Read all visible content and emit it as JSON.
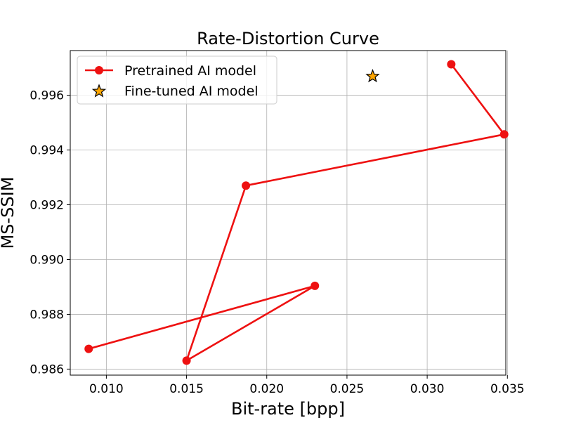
{
  "chart_data": {
    "type": "line",
    "title": "Rate-Distortion Curve",
    "xlabel": "Bit-rate [bpp]",
    "ylabel": "MS-SSIM",
    "xlim": [
      0.00775,
      0.0349
    ],
    "ylim": [
      0.98578,
      0.99763
    ],
    "x_ticks": [
      0.01,
      0.015,
      0.02,
      0.025,
      0.03,
      0.035
    ],
    "x_tick_labels": [
      "0.010",
      "0.015",
      "0.020",
      "0.025",
      "0.030",
      "0.035"
    ],
    "y_ticks": [
      0.986,
      0.988,
      0.99,
      0.992,
      0.994,
      0.996
    ],
    "y_tick_labels": [
      "0.986",
      "0.988",
      "0.990",
      "0.992",
      "0.994",
      "0.996"
    ],
    "grid": true,
    "legend_position": "top-left",
    "series": [
      {
        "name": "Pretrained AI model",
        "kind": "line-marker",
        "marker": "circle",
        "color": "#ee1111",
        "x": [
          0.0315,
          0.0348,
          0.0187,
          0.015,
          0.023,
          0.0089
        ],
        "y": [
          0.99713,
          0.99457,
          0.9927,
          0.98631,
          0.98904,
          0.98674
        ]
      },
      {
        "name": "Fine-tuned AI model",
        "kind": "scatter",
        "marker": "star",
        "color": "#ffa500",
        "edge_color": "#000000",
        "x": [
          0.0266
        ],
        "y": [
          0.99669
        ]
      }
    ]
  }
}
